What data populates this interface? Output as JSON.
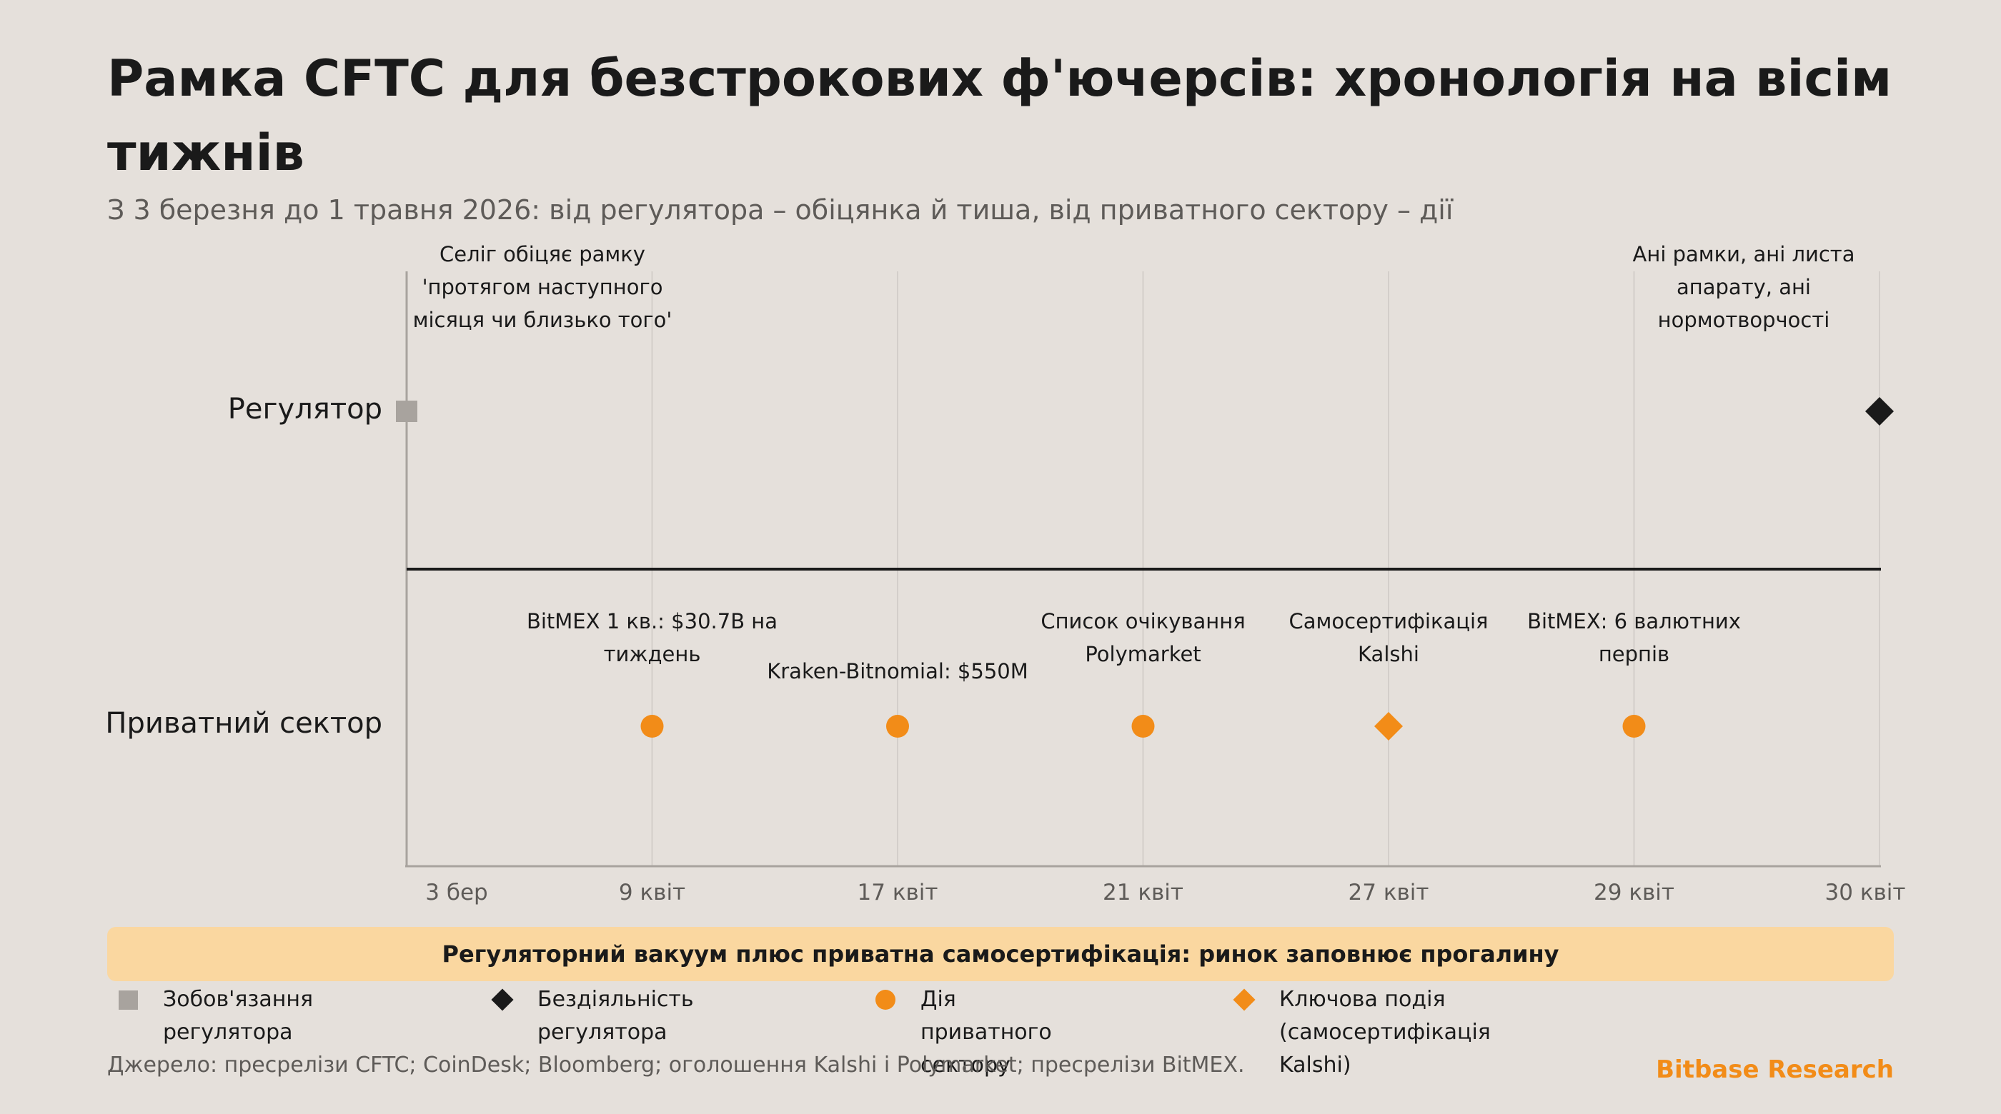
{
  "title": "Рамка CFTC для безстрокових ф'ючерсів: хронологія на вісім тижнів",
  "subtitle": "З 3 березня до 1 травня 2026: від регулятора – обіцянка й тиша, від приватного сектору – дії",
  "colors": {
    "background": "#e5e0db",
    "commitment": "#a8a39e",
    "inaction": "#1a1a1a",
    "private_action": "#f28c18",
    "banner": "#fad7a0",
    "brand": "#f28c18"
  },
  "chart_data": {
    "type": "timeline",
    "lanes": [
      "Регулятор",
      "Приватний сектор"
    ],
    "x_ticks": [
      "3 бер",
      "9 квіт",
      "17 квіт",
      "21 квіт",
      "27 квіт",
      "29 квіт",
      "30 квіт"
    ],
    "events": [
      {
        "lane": "Регулятор",
        "x": "3 бер",
        "marker": "square",
        "category": "Зобов'язання регулятора",
        "label": [
          "Селіг обіцяє рамку",
          "'протягом наступного",
          "місяця чи близько того'"
        ]
      },
      {
        "lane": "Регулятор",
        "x": "30 квіт",
        "marker": "diamond",
        "category": "Бездіяльність регулятора",
        "label": [
          "Ані рамки, ані листа",
          "апарату, ані",
          "нормотворчості"
        ]
      },
      {
        "lane": "Приватний сектор",
        "x": "9 квіт",
        "marker": "circle",
        "category": "Дія приватного сектору",
        "label": [
          "BitMEX 1 кв.: $30.7B на",
          "тиждень"
        ]
      },
      {
        "lane": "Приватний сектор",
        "x": "17 квіт",
        "marker": "circle",
        "category": "Дія приватного сектору",
        "label": [
          "Kraken-Bitnomial: $550M"
        ]
      },
      {
        "lane": "Приватний сектор",
        "x": "21 квіт",
        "marker": "circle",
        "category": "Дія приватного сектору",
        "label": [
          "Список очікування",
          "Polymarket"
        ]
      },
      {
        "lane": "Приватний сектор",
        "x": "27 квіт",
        "marker": "diamond",
        "category": "Ключова подія (самосертифікація Kalshi)",
        "label": [
          "Самосертифікація",
          "Kalshi"
        ]
      },
      {
        "lane": "Приватний сектор",
        "x": "29 квіт",
        "marker": "circle",
        "category": "Дія приватного сектору",
        "label": [
          "BitMEX: 6 валютних",
          "перпів"
        ]
      }
    ]
  },
  "banner": "Регуляторний вакуум плюс приватна самосертифікація: ринок заповнює прогалину",
  "legend": [
    {
      "label": "Зобов'язання регулятора",
      "icon": "square",
      "color": "#a8a39e"
    },
    {
      "label": "Бездіяльність регулятора",
      "icon": "diamond",
      "color": "#1a1a1a"
    },
    {
      "label": "Дія приватного сектору",
      "icon": "circle",
      "color": "#f28c18"
    },
    {
      "label_lines": [
        "Ключова подія",
        "(самосертифікація Kalshi)"
      ],
      "icon": "diamond",
      "color": "#f28c18"
    }
  ],
  "source": "Джерело: пресрелізи CFTC; CoinDesk; Bloomberg; оголошення Kalshi і Polymarket; пресрелізи BitMEX.",
  "brand": "Bitbase Research"
}
